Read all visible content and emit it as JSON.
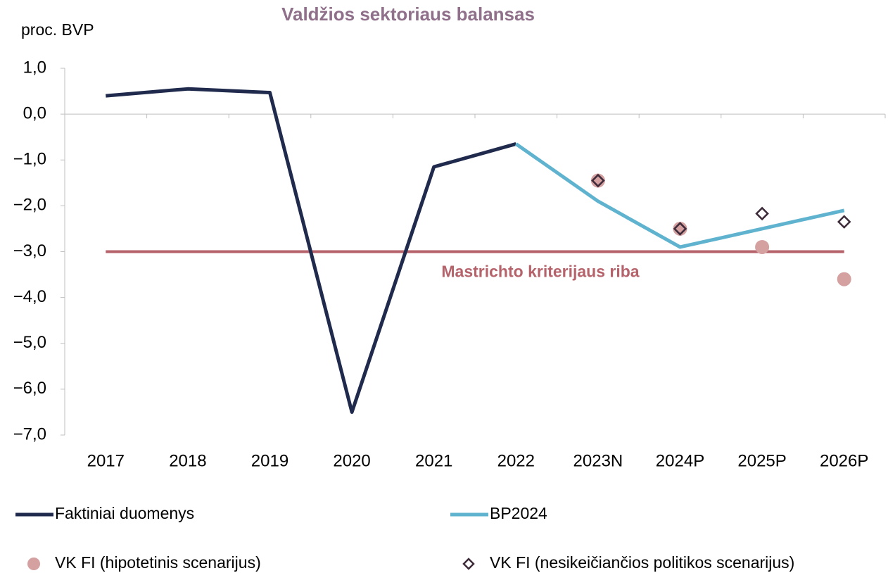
{
  "chart_data": {
    "type": "line",
    "title": "Valdžios sektoriaus balansas",
    "y_label": "proc. BVP",
    "categories": [
      "2017",
      "2018",
      "2019",
      "2020",
      "2021",
      "2022",
      "2023N",
      "2024P",
      "2025P",
      "2026P"
    ],
    "series": [
      {
        "name": "Faktiniai duomenys",
        "color": "#1f2a4d",
        "style": "line",
        "values": [
          0.4,
          0.55,
          0.47,
          -6.5,
          -1.15,
          -0.65,
          null,
          null,
          null,
          null
        ]
      },
      {
        "name": "BP2024",
        "color": "#5fb3cf",
        "style": "line",
        "values": [
          null,
          null,
          null,
          null,
          null,
          -0.65,
          -1.9,
          -2.9,
          -2.5,
          -2.1
        ]
      },
      {
        "name": "VK FI (hipotetinis scenarijus)",
        "color": "#d4a0a0",
        "style": "dot",
        "values": [
          null,
          null,
          null,
          null,
          null,
          null,
          -1.45,
          -2.5,
          -2.9,
          -3.6
        ]
      },
      {
        "name": "VK FI (nesikeičiančios politikos scenarijus)",
        "color": "#3d2b3a",
        "style": "diamond",
        "values": [
          null,
          null,
          null,
          null,
          null,
          null,
          -1.45,
          -2.5,
          -2.17,
          -2.35
        ]
      }
    ],
    "reference_line": {
      "value": -3,
      "label": "Mastrichto kriterijaus riba",
      "color": "#b5626a"
    },
    "ylim": [
      -7,
      1
    ],
    "yticks": [
      {
        "value": 1,
        "label": "1,0"
      },
      {
        "value": 0,
        "label": "0,0"
      },
      {
        "value": -1,
        "label": "−1,0"
      },
      {
        "value": -2,
        "label": "−2,0"
      },
      {
        "value": -3,
        "label": "−3,0"
      },
      {
        "value": -4,
        "label": "−4,0"
      },
      {
        "value": -5,
        "label": "−5,0"
      },
      {
        "value": -6,
        "label": "−6,0"
      },
      {
        "value": -7,
        "label": "−7,0"
      }
    ]
  }
}
